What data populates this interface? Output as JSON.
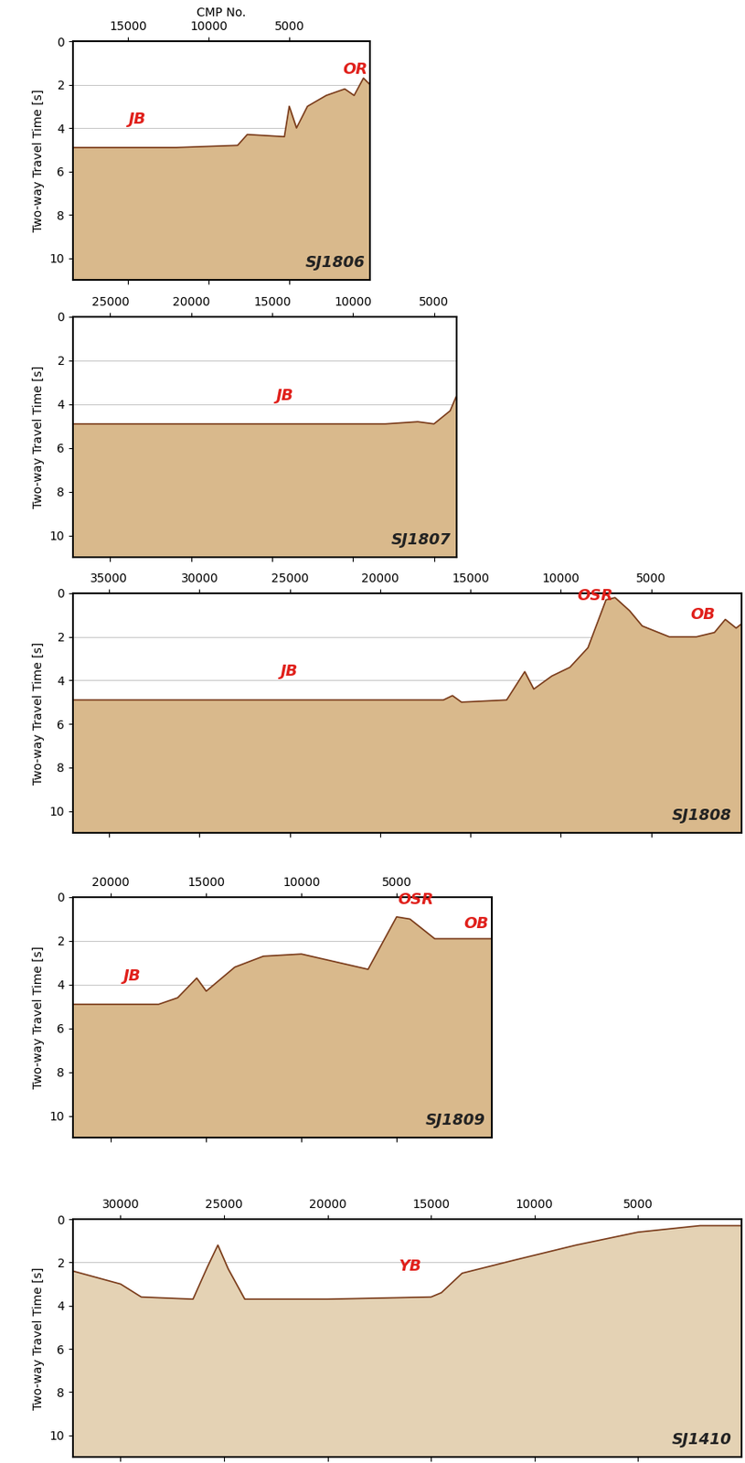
{
  "chart_data": [
    {
      "type": "area",
      "title": "SJ1806",
      "xlabel": "CMP No.",
      "ylabel": "Two-way Travel Time [s]",
      "xlim": [
        18400,
        0
      ],
      "xticks": [
        15000,
        10000,
        5000
      ],
      "ylim": [
        11,
        0
      ],
      "yticks": [
        0,
        2,
        4,
        6,
        8,
        10
      ],
      "grid": true,
      "color": "#d9b98c",
      "x": [
        18400,
        12000,
        8200,
        7600,
        5300,
        5000,
        4550,
        3870,
        2710,
        1560,
        980,
        400,
        0
      ],
      "values": [
        4.9,
        4.9,
        4.8,
        4.3,
        4.4,
        3.0,
        4.0,
        3.0,
        2.5,
        2.2,
        2.5,
        1.7,
        2.0
      ],
      "annotations": [
        {
          "text": "JB",
          "x": 14400,
          "y": 3.6
        },
        {
          "text": "OR",
          "x": 900,
          "y": 1.3
        }
      ]
    },
    {
      "type": "area",
      "title": "SJ1807",
      "ylabel": "Two-way Travel Time [s]",
      "xlim": [
        27300,
        3600
      ],
      "xticks": [
        25000,
        20000,
        15000,
        10000,
        5000
      ],
      "ylim": [
        11,
        0
      ],
      "yticks": [
        0,
        2,
        4,
        6,
        8,
        10
      ],
      "grid": true,
      "color": "#d9b98c",
      "x": [
        27300,
        8000,
        6000,
        5000,
        4000,
        3600
      ],
      "values": [
        4.9,
        4.9,
        4.8,
        4.9,
        4.3,
        3.6
      ],
      "annotations": [
        {
          "text": "JB",
          "x": 14200,
          "y": 3.6
        }
      ]
    },
    {
      "type": "area",
      "title": "SJ1808",
      "ylabel": "Two-way Travel Time [s]",
      "xlim": [
        37000,
        0
      ],
      "xticks": [
        35000,
        30000,
        25000,
        20000,
        15000,
        10000,
        5000
      ],
      "ylim": [
        11,
        0
      ],
      "yticks": [
        0,
        2,
        4,
        6,
        8,
        10
      ],
      "grid": true,
      "color": "#d9b98c",
      "x": [
        37000,
        16500,
        16000,
        15500,
        13000,
        12000,
        11500,
        10500,
        9500,
        8500,
        7500,
        7000,
        6200,
        5500,
        4000,
        2500,
        1500,
        900,
        300,
        0
      ],
      "values": [
        4.9,
        4.9,
        4.7,
        5.0,
        4.9,
        3.6,
        4.4,
        3.8,
        3.4,
        2.5,
        0.3,
        0.2,
        0.8,
        1.5,
        2.0,
        2.0,
        1.8,
        1.2,
        1.6,
        1.4
      ],
      "annotations": [
        {
          "text": "JB",
          "x": 25000,
          "y": 3.6
        },
        {
          "text": "OSR",
          "x": 8100,
          "y": 0.1
        },
        {
          "text": "OB",
          "x": 2150,
          "y": 1.0
        }
      ]
    },
    {
      "type": "area",
      "title": "SJ1809",
      "ylabel": "Two-way Travel Time [s]",
      "xlim": [
        22000,
        0
      ],
      "xticks": [
        20000,
        15000,
        10000,
        5000
      ],
      "ylim": [
        11,
        0
      ],
      "yticks": [
        0,
        2,
        4,
        6,
        8,
        10
      ],
      "grid": true,
      "color": "#d9b98c",
      "x": [
        22000,
        17500,
        16500,
        15500,
        15000,
        13500,
        12000,
        10000,
        8000,
        6500,
        5000,
        4300,
        3000,
        0
      ],
      "values": [
        4.9,
        4.9,
        4.6,
        3.7,
        4.3,
        3.2,
        2.7,
        2.6,
        3.0,
        3.3,
        0.9,
        1.0,
        1.9,
        1.9
      ],
      "annotations": [
        {
          "text": "JB",
          "x": 18900,
          "y": 3.6
        },
        {
          "text": "OSR",
          "x": 4000,
          "y": 0.1
        },
        {
          "text": "OB",
          "x": 830,
          "y": 1.2
        }
      ]
    },
    {
      "type": "area",
      "title": "SJ1410",
      "ylabel": "Two-way Travel Time [s]",
      "xlim": [
        32300,
        0
      ],
      "xticks": [
        30000,
        25000,
        20000,
        15000,
        10000,
        5000
      ],
      "ylim": [
        11,
        0
      ],
      "yticks": [
        0,
        2,
        4,
        6,
        8,
        10
      ],
      "grid": true,
      "color": "#e4d2b4",
      "x": [
        32300,
        30000,
        29000,
        26500,
        25800,
        25300,
        24800,
        24000,
        20000,
        15000,
        14500,
        13500,
        11000,
        8000,
        5000,
        2000,
        0
      ],
      "values": [
        2.4,
        3.0,
        3.6,
        3.7,
        2.2,
        1.2,
        2.3,
        3.7,
        3.7,
        3.6,
        3.4,
        2.5,
        1.9,
        1.2,
        0.6,
        0.3,
        0.3
      ],
      "annotations": [
        {
          "text": "YB",
          "x": 16000,
          "y": 2.2
        }
      ]
    }
  ]
}
